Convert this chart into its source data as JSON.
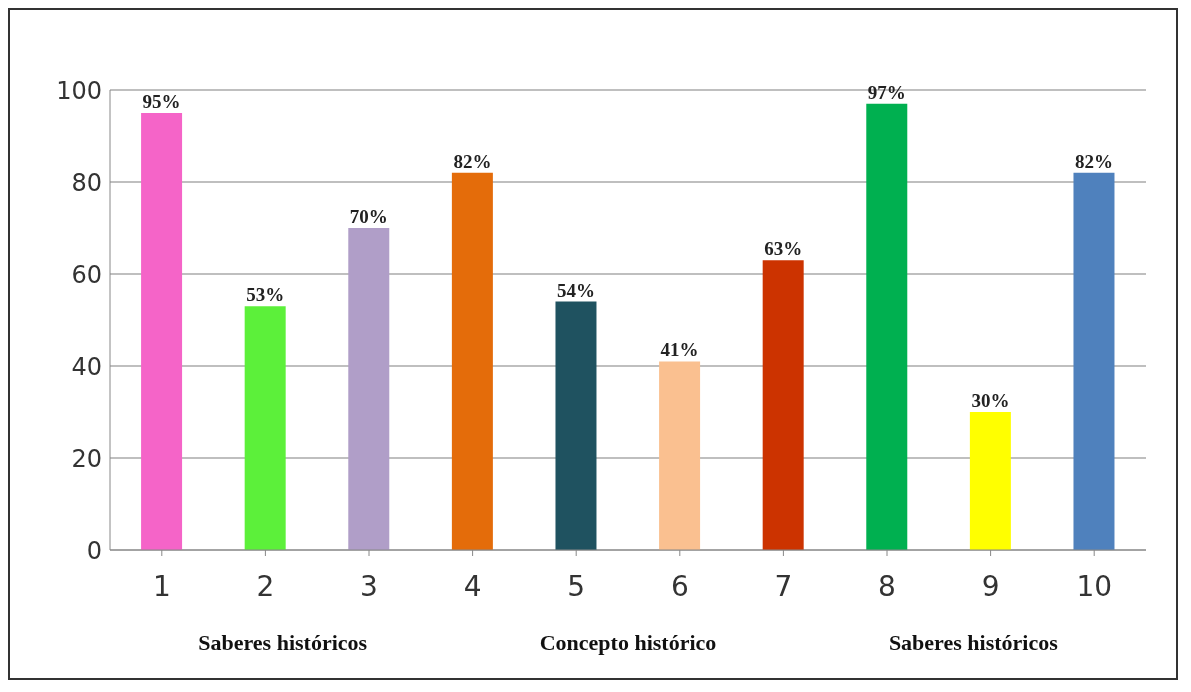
{
  "chart_data": {
    "type": "bar",
    "categories": [
      "1",
      "2",
      "3",
      "4",
      "5",
      "6",
      "7",
      "8",
      "9",
      "10"
    ],
    "values": [
      95,
      53,
      70,
      82,
      54,
      41,
      63,
      97,
      30,
      82
    ],
    "colors": [
      "#f564c8",
      "#5cf03a",
      "#b09ec8",
      "#e46c0a",
      "#1f5260",
      "#fac090",
      "#cc3300",
      "#00b050",
      "#ffff00",
      "#4f81bd"
    ],
    "value_labels": [
      "95%",
      "53%",
      "70%",
      "82%",
      "54%",
      "41%",
      "63%",
      "97%",
      "30%",
      "82%"
    ],
    "ylim": [
      0,
      100
    ],
    "yticks": [
      0,
      20,
      40,
      60,
      80,
      100
    ],
    "grid": "y",
    "annotations": [
      "Saberes históricos",
      "Concepto histórico",
      "Saberes históricos"
    ]
  }
}
